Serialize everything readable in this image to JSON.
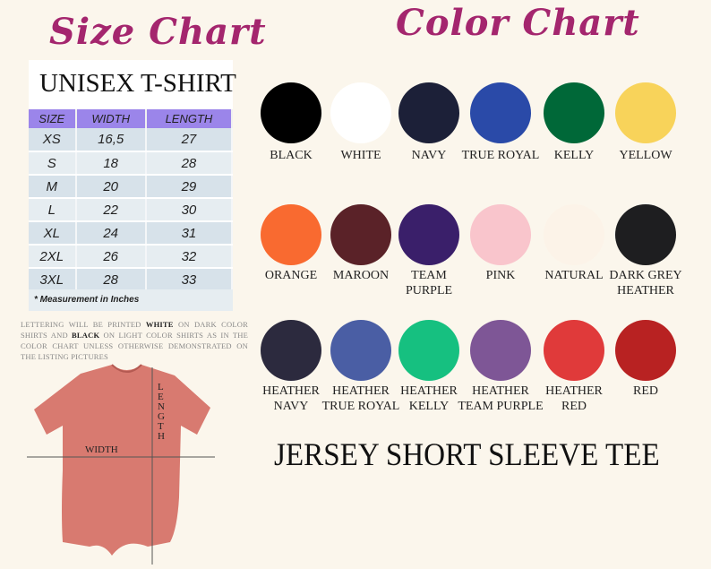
{
  "size_chart": {
    "title": "Size Chart",
    "subtitle": "UNISEX T-SHIRT",
    "headers": [
      "SIZE",
      "WIDTH",
      "LENGTH"
    ],
    "rows": [
      [
        "XS",
        "16,5",
        "27"
      ],
      [
        "S",
        "18",
        "28"
      ],
      [
        "M",
        "20",
        "29"
      ],
      [
        "L",
        "22",
        "30"
      ],
      [
        "XL",
        "24",
        "31"
      ],
      [
        "2XL",
        "26",
        "32"
      ],
      [
        "3XL",
        "28",
        "33"
      ]
    ],
    "note": "* Measurement in Inches"
  },
  "lettering": {
    "p1": "LETTERING WILL BE PRINTED ",
    "w": "WHITE",
    "p2": " ON DARK COLOR SHIRTS AND ",
    "b": "BLACK",
    "p3": " ON LIGHT COLOR SHIRTS AS IN THE COLOR CHART UNLESS OTHERWISE DEMONSTRATED ON THE LISTING PICTURES"
  },
  "shirt": {
    "width_label": "WIDTH",
    "length_label": "LENGTH",
    "color": "#d87a70"
  },
  "color_chart": {
    "title": "Color Chart",
    "colors": [
      {
        "name": "BLACK",
        "hex": "#000000"
      },
      {
        "name": "WHITE",
        "hex": "#ffffff"
      },
      {
        "name": "NAVY",
        "hex": "#1c2038"
      },
      {
        "name": "TRUE ROYAL",
        "hex": "#2a4aa8"
      },
      {
        "name": "KELLY",
        "hex": "#006838"
      },
      {
        "name": "YELLOW",
        "hex": "#f8d35a"
      },
      {
        "name": "ORANGE",
        "hex": "#f96a30"
      },
      {
        "name": "MAROON",
        "hex": "#5a2228"
      },
      {
        "name": "TEAM\nPURPLE",
        "hex": "#3a1f6a"
      },
      {
        "name": "PINK",
        "hex": "#f9c5cc"
      },
      {
        "name": "NATURAL",
        "hex": "#fcf3e8"
      },
      {
        "name": "DARK GREY\nHEATHER",
        "hex": "#1e1e20"
      },
      {
        "name": "HEATHER\nNAVY",
        "hex": "#2c2a3e"
      },
      {
        "name": "HEATHER\nTRUE ROYAL",
        "hex": "#4a5ea4"
      },
      {
        "name": "HEATHER\nKELLY",
        "hex": "#16c080"
      },
      {
        "name": "HEATHER\nTEAM PURPLE",
        "hex": "#7e5696"
      },
      {
        "name": "HEATHER\nRED",
        "hex": "#e03a3a"
      },
      {
        "name": "RED",
        "hex": "#b82222"
      }
    ]
  },
  "footer": "JERSEY SHORT SLEEVE TEE"
}
